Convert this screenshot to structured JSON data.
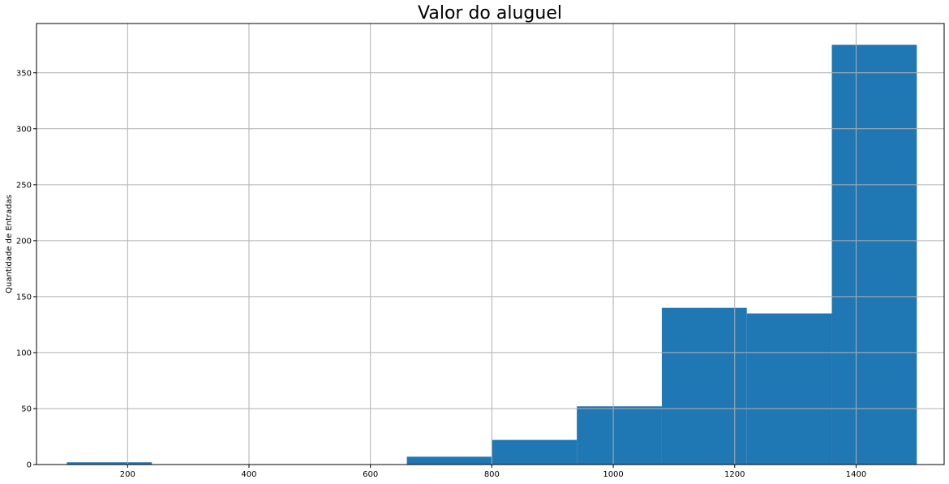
{
  "chart_data": {
    "type": "bar",
    "title": "Valor do aluguel",
    "xlabel": "",
    "ylabel": "Quantidade de Entradas",
    "xlim": [
      50,
      1545
    ],
    "ylim": [
      0,
      394
    ],
    "xticks": [
      200,
      400,
      600,
      800,
      1000,
      1200,
      1400
    ],
    "yticks": [
      0,
      50,
      100,
      150,
      200,
      250,
      300,
      350
    ],
    "grid": true,
    "bar_color": "#1f77b4",
    "bins": [
      {
        "x0": 100,
        "x1": 240,
        "count": 2
      },
      {
        "x0": 240,
        "x1": 380,
        "count": 0
      },
      {
        "x0": 380,
        "x1": 520,
        "count": 0
      },
      {
        "x0": 520,
        "x1": 660,
        "count": 0
      },
      {
        "x0": 660,
        "x1": 800,
        "count": 7
      },
      {
        "x0": 800,
        "x1": 940,
        "count": 22
      },
      {
        "x0": 940,
        "x1": 1080,
        "count": 52
      },
      {
        "x0": 1080,
        "x1": 1220,
        "count": 140
      },
      {
        "x0": 1220,
        "x1": 1360,
        "count": 135
      },
      {
        "x0": 1360,
        "x1": 1500,
        "count": 375
      }
    ]
  }
}
